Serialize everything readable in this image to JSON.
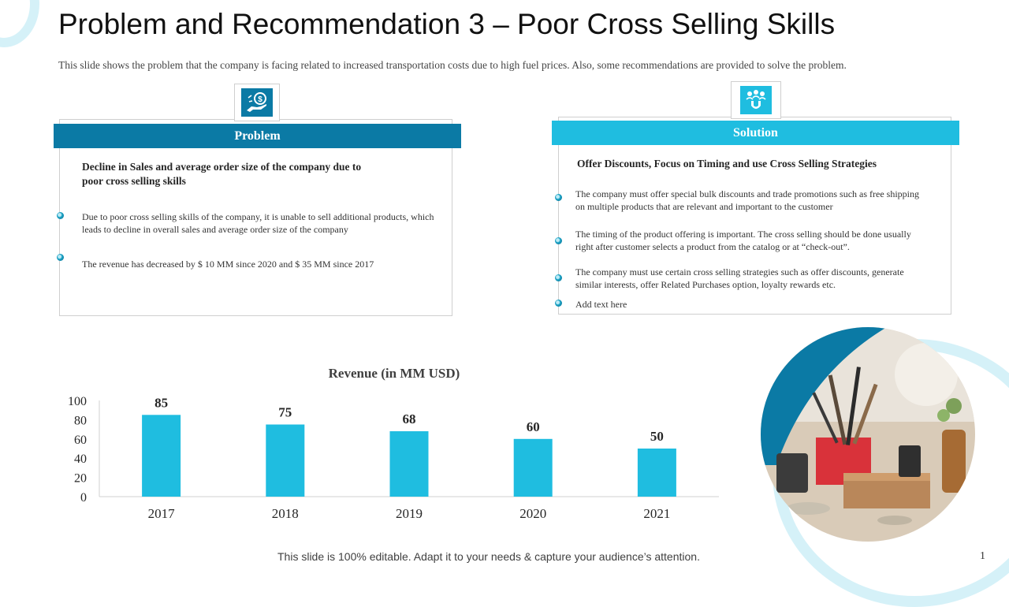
{
  "title": "Problem and Recommendation 3 – Poor Cross Selling Skills",
  "subtitle": "This slide shows the problem that the company is facing related to increased transportation costs due to high fuel prices. Also, some recommendations are provided to solve the problem.",
  "colors": {
    "problem_header": "#0b7aa5",
    "solution_header": "#1fbde0",
    "bar": "#1fbde0",
    "deco": "#d5f1f8"
  },
  "problem": {
    "header": "Problem",
    "icon": "money-hand-icon",
    "heading": "Decline in Sales and average order size of the company due to poor cross selling skills",
    "bullets": [
      "Due to poor cross selling skills of the company, it is unable to sell additional products, which leads to decline in overall sales and average order size of the company",
      "The revenue has decreased by $ 10 MM since 2020 and $ 35 MM since 2017"
    ]
  },
  "solution": {
    "header": "Solution",
    "icon": "magnet-people-icon",
    "heading": "Offer Discounts, Focus on Timing and use Cross Selling Strategies",
    "bullets": [
      "The company must offer special bulk discounts and trade promotions such as free shipping on multiple products that are relevant and important to the customer",
      "The timing of the product offering is important. The cross selling should be done usually right after customer selects a product from the catalog or at “check-out”.",
      "The company must use certain cross selling strategies such as offer discounts, generate similar interests, offer Related Purchases option, loyalty rewards etc.",
      "Add text here"
    ]
  },
  "chart_data": {
    "type": "bar",
    "title": "Revenue (in MM USD)",
    "categories": [
      "2017",
      "2018",
      "2019",
      "2020",
      "2021"
    ],
    "values": [
      85,
      75,
      68,
      60,
      50
    ],
    "yticks": [
      "0",
      "20",
      "40",
      "60",
      "80",
      "100"
    ],
    "ylim": [
      0,
      100
    ],
    "xlabel": "",
    "ylabel": ""
  },
  "photo": {
    "icon": "craft-workshop-photo"
  },
  "footer": "This slide is 100% editable. Adapt it to your needs & capture your audience’s attention.",
  "page_number": "1"
}
